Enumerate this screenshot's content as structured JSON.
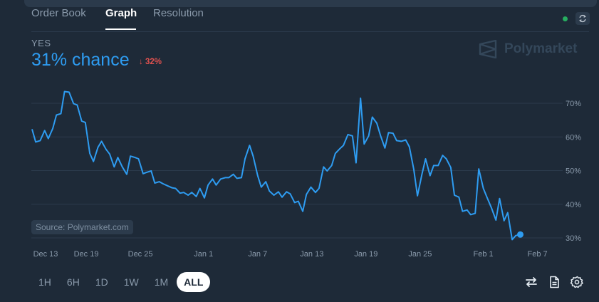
{
  "tabs": [
    {
      "label": "Order Book"
    },
    {
      "label": "Graph"
    },
    {
      "label": "Resolution"
    }
  ],
  "active_tab": "Graph",
  "outcome_label": "YES",
  "chance_text": "31% chance",
  "change_text": "32%",
  "change_direction": "down",
  "brand_name": "Polymarket",
  "source_label": "Source: Polymarket.com",
  "time_ranges": [
    "1H",
    "6H",
    "1D",
    "1W",
    "1M",
    "ALL"
  ],
  "active_range": "ALL",
  "toolbar_icons": [
    "swap-icon",
    "document-icon",
    "settings-icon"
  ],
  "colors": {
    "line": "#2e9cf1",
    "background": "#1e2a38",
    "grid": "#2c3b4c",
    "negative": "#e0514f",
    "live": "#27ae60"
  },
  "chart_data": {
    "type": "line",
    "title": "",
    "xlabel": "",
    "ylabel": "",
    "x_ticks": [
      "Dec 13",
      "Dec 19",
      "Dec 25",
      "Jan 1",
      "Jan 7",
      "Jan 13",
      "Jan 19",
      "Jan 25",
      "Feb 1",
      "Feb 7"
    ],
    "y_ticks": [
      "30%",
      "40%",
      "50%",
      "60%",
      "70%"
    ],
    "ylim": [
      28,
      75
    ],
    "xlim_days": [
      0,
      58.4
    ],
    "grid": true,
    "series": [
      {
        "values": [
          [
            0.0,
            62.3
          ],
          [
            0.4,
            58.5
          ],
          [
            0.9,
            58.9
          ],
          [
            1.4,
            61.9
          ],
          [
            1.8,
            59.5
          ],
          [
            2.3,
            62.5
          ],
          [
            2.7,
            66.5
          ],
          [
            3.2,
            66.9
          ],
          [
            3.6,
            73.5
          ],
          [
            4.1,
            73.3
          ],
          [
            4.6,
            69.9
          ],
          [
            5.0,
            69.5
          ],
          [
            5.5,
            64.7
          ],
          [
            5.9,
            64.3
          ],
          [
            6.4,
            55.1
          ],
          [
            6.8,
            52.7
          ],
          [
            7.3,
            56.9
          ],
          [
            7.7,
            58.7
          ],
          [
            8.2,
            56.3
          ],
          [
            8.6,
            54.9
          ],
          [
            9.1,
            51.1
          ],
          [
            9.5,
            53.9
          ],
          [
            10.0,
            51.1
          ],
          [
            10.5,
            48.9
          ],
          [
            10.9,
            54.3
          ],
          [
            11.4,
            53.9
          ],
          [
            11.8,
            53.5
          ],
          [
            12.3,
            49.1
          ],
          [
            12.7,
            49.5
          ],
          [
            13.2,
            49.9
          ],
          [
            13.6,
            46.3
          ],
          [
            14.1,
            46.7
          ],
          [
            14.5,
            46.1
          ],
          [
            15.0,
            45.5
          ],
          [
            15.5,
            44.9
          ],
          [
            15.9,
            44.7
          ],
          [
            16.4,
            43.3
          ],
          [
            16.8,
            43.5
          ],
          [
            17.3,
            42.7
          ],
          [
            17.7,
            43.5
          ],
          [
            18.2,
            42.3
          ],
          [
            18.6,
            44.7
          ],
          [
            19.1,
            41.9
          ],
          [
            19.5,
            45.7
          ],
          [
            20.0,
            47.5
          ],
          [
            20.4,
            45.7
          ],
          [
            20.9,
            47.5
          ],
          [
            21.4,
            47.9
          ],
          [
            21.8,
            47.9
          ],
          [
            22.3,
            48.9
          ],
          [
            22.7,
            47.7
          ],
          [
            23.2,
            47.9
          ],
          [
            23.6,
            53.5
          ],
          [
            24.1,
            57.5
          ],
          [
            24.5,
            54.3
          ],
          [
            25.0,
            48.5
          ],
          [
            25.4,
            45.1
          ],
          [
            25.9,
            46.7
          ],
          [
            26.3,
            43.9
          ],
          [
            26.8,
            42.7
          ],
          [
            27.3,
            43.7
          ],
          [
            27.7,
            42.1
          ],
          [
            28.2,
            43.7
          ],
          [
            28.6,
            43.1
          ],
          [
            29.1,
            40.5
          ],
          [
            29.5,
            40.9
          ],
          [
            30.0,
            37.9
          ],
          [
            30.4,
            42.9
          ],
          [
            30.9,
            45.1
          ],
          [
            31.4,
            43.5
          ],
          [
            31.8,
            44.7
          ],
          [
            32.3,
            51.1
          ],
          [
            32.7,
            49.9
          ],
          [
            33.2,
            51.5
          ],
          [
            33.6,
            55.1
          ],
          [
            34.1,
            56.5
          ],
          [
            34.5,
            57.5
          ],
          [
            35.0,
            60.7
          ],
          [
            35.5,
            60.3
          ],
          [
            35.9,
            52.3
          ],
          [
            36.4,
            71.5
          ],
          [
            36.8,
            57.9
          ],
          [
            37.3,
            60.3
          ],
          [
            37.7,
            65.9
          ],
          [
            38.2,
            64.1
          ],
          [
            38.6,
            60.5
          ],
          [
            39.1,
            56.7
          ],
          [
            39.5,
            61.3
          ],
          [
            40.0,
            61.1
          ],
          [
            40.4,
            58.9
          ],
          [
            40.9,
            58.7
          ],
          [
            41.4,
            59.1
          ],
          [
            41.8,
            57.1
          ],
          [
            42.3,
            50.3
          ],
          [
            42.7,
            42.5
          ],
          [
            43.2,
            48.9
          ],
          [
            43.6,
            53.5
          ],
          [
            44.1,
            48.5
          ],
          [
            44.5,
            51.5
          ],
          [
            45.0,
            51.5
          ],
          [
            45.5,
            54.5
          ],
          [
            45.9,
            53.5
          ],
          [
            46.4,
            50.9
          ],
          [
            46.8,
            42.7
          ],
          [
            47.3,
            42.1
          ],
          [
            47.7,
            37.9
          ],
          [
            48.2,
            38.3
          ],
          [
            48.6,
            36.9
          ],
          [
            49.1,
            37.3
          ],
          [
            49.5,
            50.5
          ],
          [
            50.0,
            44.7
          ],
          [
            50.4,
            42.1
          ],
          [
            50.9,
            38.9
          ],
          [
            51.4,
            35.3
          ],
          [
            51.8,
            41.7
          ],
          [
            52.3,
            35.1
          ],
          [
            52.7,
            37.5
          ],
          [
            53.2,
            29.5
          ],
          [
            53.6,
            30.7
          ],
          [
            54.1,
            31.0
          ]
        ]
      }
    ]
  }
}
